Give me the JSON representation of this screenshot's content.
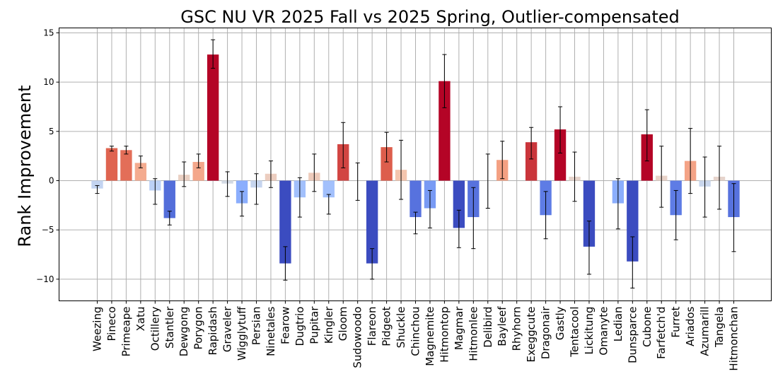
{
  "chart_data": {
    "type": "bar",
    "title": "GSC NU VR 2025 Fall vs 2025 Spring, Outlier-compensated",
    "xlabel": "",
    "ylabel": "Rank Improvement",
    "ylim": [
      -12.2,
      15.5
    ],
    "yticks": [
      -10,
      -5,
      0,
      5,
      10,
      15
    ],
    "grid": true,
    "colormap": "coolwarm",
    "categories": [
      "Weezing",
      "Pineco",
      "Primeape",
      "Xatu",
      "Octillery",
      "Stantler",
      "Dewgong",
      "Porygon",
      "Rapidash",
      "Graveler",
      "Wigglytuff",
      "Persian",
      "Ninetales",
      "Fearow",
      "Dugtrio",
      "Pupitar",
      "Kingler",
      "Gloom",
      "Sudowoodo",
      "Flareon",
      "Pidgeot",
      "Shuckle",
      "Chinchou",
      "Magnemite",
      "Hitmontop",
      "Magmar",
      "Hitmonlee",
      "Delibird",
      "Bayleef",
      "Rhyhorn",
      "Exeggcute",
      "Dragonair",
      "Gastly",
      "Tentacool",
      "Lickitung",
      "Omanyte",
      "Ledian",
      "Dunsparce",
      "Cubone",
      "Farfetch'd",
      "Furret",
      "Ariados",
      "Azumarill",
      "Tangela",
      "Hitmonchan"
    ],
    "values": [
      -0.8,
      3.3,
      3.1,
      1.8,
      -1.0,
      -3.8,
      0.6,
      1.9,
      12.8,
      -0.3,
      -2.3,
      -0.7,
      0.7,
      -8.4,
      -1.7,
      0.8,
      -1.7,
      3.7,
      0.0,
      -8.4,
      3.4,
      1.1,
      -3.7,
      -2.8,
      10.1,
      -4.8,
      -3.7,
      0.0,
      2.1,
      0.0,
      3.9,
      -3.5,
      5.2,
      0.4,
      -6.7,
      0.0,
      -2.3,
      -8.2,
      4.7,
      0.5,
      -3.5,
      2.0,
      -0.6,
      0.4,
      -3.7
    ],
    "error_low": [
      -1.3,
      3.0,
      2.7,
      1.3,
      -2.4,
      -4.5,
      -0.6,
      1.3,
      11.4,
      -1.6,
      -3.6,
      -2.4,
      -0.7,
      -10.1,
      -3.7,
      -1.1,
      -3.4,
      1.3,
      -2.0,
      -10.0,
      1.9,
      -1.9,
      -5.4,
      -4.8,
      7.4,
      -6.8,
      -6.9,
      -2.8,
      0.2,
      0.0,
      2.2,
      -5.9,
      2.8,
      -2.1,
      -9.5,
      0.0,
      -4.9,
      -10.9,
      2.0,
      -2.7,
      -6.0,
      -1.3,
      -3.7,
      -2.9,
      -7.2
    ],
    "error_high": [
      -0.5,
      3.5,
      3.5,
      2.5,
      0.2,
      -3.1,
      1.9,
      2.7,
      14.3,
      0.9,
      -1.1,
      0.7,
      2.0,
      -6.7,
      0.3,
      2.7,
      -1.4,
      5.9,
      1.8,
      -6.9,
      4.9,
      4.1,
      -3.2,
      -1.0,
      12.8,
      -3.0,
      -0.7,
      2.7,
      4.0,
      0.0,
      5.4,
      -1.1,
      7.5,
      2.9,
      -4.1,
      0.0,
      0.2,
      -5.7,
      7.2,
      3.5,
      -1.0,
      5.3,
      2.4,
      3.5,
      -0.3
    ]
  }
}
